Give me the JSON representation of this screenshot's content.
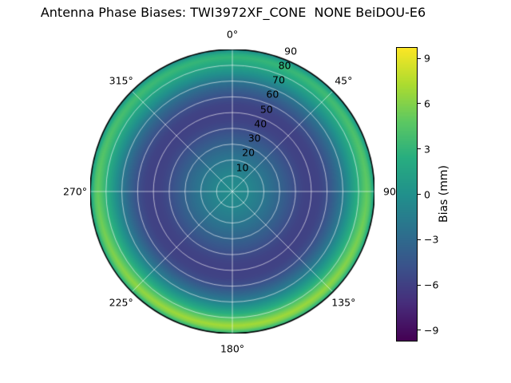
{
  "page": {
    "background": "#ffffff"
  },
  "chart_data": {
    "type": "heatmap",
    "projection": "polar",
    "title": "Antenna Phase Biases: TWI3972XF_CONE  NONE BeiDOU-E6",
    "colormap": "viridis",
    "clim": [
      -9.7,
      9.7
    ],
    "units": "mm",
    "grid": {
      "color": "#ffffff",
      "angular_step_deg": 45,
      "radial_step_deg": 10
    },
    "angular_axis": {
      "zero_position": "top",
      "direction": "clockwise",
      "tick_labels": [
        {
          "deg": 0,
          "label": "0°"
        },
        {
          "deg": 45,
          "label": "45°"
        },
        {
          "deg": 90,
          "label": "90"
        },
        {
          "deg": 135,
          "label": "135°"
        },
        {
          "deg": 180,
          "label": "180°"
        },
        {
          "deg": 225,
          "label": "225°"
        },
        {
          "deg": 270,
          "label": "270°"
        },
        {
          "deg": 315,
          "label": "315°"
        }
      ]
    },
    "radial_axis": {
      "range": [
        0,
        90
      ],
      "ticks": [
        10,
        20,
        30,
        40,
        50,
        60,
        70,
        80,
        90
      ],
      "label_azimuth_deg": 22.5
    },
    "colorbar": {
      "label": "Bias (mm)",
      "ticks": [
        9,
        6,
        3,
        0,
        -3,
        -6,
        -9
      ],
      "tick_labels": [
        "9",
        "6",
        "3",
        "0",
        "−3",
        "−6",
        "−9"
      ]
    },
    "radial_profile": {
      "zenith_deg": [
        0,
        10,
        20,
        30,
        40,
        45,
        50,
        55,
        60,
        65,
        70,
        75,
        80,
        83,
        85,
        87,
        88.5,
        90
      ],
      "bias_mm": [
        -0.2,
        -0.8,
        -2.0,
        -3.5,
        -5.2,
        -5.8,
        -6.0,
        -5.8,
        -5.0,
        -3.5,
        -1.8,
        0.5,
        2.8,
        4.2,
        5.0,
        4.2,
        2.5,
        1.0
      ]
    },
    "azimuthal_modulation": {
      "peak_azimuth_deg": 180,
      "zenith_deg": [
        0,
        60,
        75,
        80,
        85,
        90
      ],
      "amplitude_mm": [
        0,
        0,
        0.6,
        1.2,
        2.0,
        1.5
      ]
    },
    "viridis_stops": [
      [
        0.0,
        "#440154"
      ],
      [
        0.125,
        "#472d7b"
      ],
      [
        0.25,
        "#3b528b"
      ],
      [
        0.375,
        "#2c728e"
      ],
      [
        0.5,
        "#21918c"
      ],
      [
        0.625,
        "#28ae80"
      ],
      [
        0.75,
        "#5ec962"
      ],
      [
        0.875,
        "#addc30"
      ],
      [
        1.0,
        "#fde725"
      ]
    ]
  }
}
